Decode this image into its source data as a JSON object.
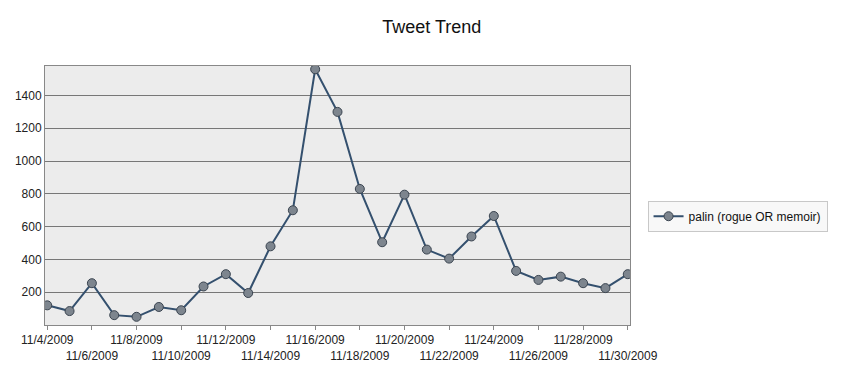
{
  "chart_data": {
    "type": "line",
    "title": "Tweet Trend",
    "categories": [
      "11/4/2009",
      null,
      "11/6/2009",
      null,
      "11/8/2009",
      null,
      "11/10/2009",
      null,
      "11/12/2009",
      null,
      "11/14/2009",
      null,
      "11/16/2009",
      null,
      "11/18/2009",
      null,
      "11/20/2009",
      null,
      "11/22/2009",
      null,
      "11/24/2009",
      null,
      "11/26/2009",
      null,
      "11/28/2009",
      null,
      "11/30/2009"
    ],
    "series": [
      {
        "name": "palin (rogue OR memoir)",
        "color": "#34506e",
        "marker": "circle",
        "values": [
          120,
          85,
          255,
          60,
          50,
          110,
          90,
          235,
          310,
          195,
          480,
          700,
          1560,
          1300,
          830,
          505,
          795,
          460,
          405,
          540,
          665,
          330,
          275,
          295,
          255,
          225,
          310
        ]
      }
    ],
    "ylim": [
      0,
      1580
    ],
    "yticks": [
      200,
      400,
      600,
      800,
      1000,
      1200,
      1400
    ],
    "grid": true,
    "legend": "right"
  }
}
